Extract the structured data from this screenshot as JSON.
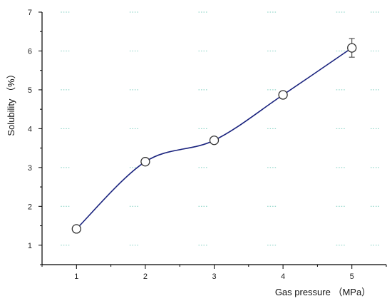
{
  "chart_data": {
    "type": "line",
    "xlabel": "Gas pressure （MPa）",
    "ylabel": "Solubility （%）",
    "x": [
      1,
      2,
      3,
      4,
      5
    ],
    "series": [
      {
        "values": [
          1.42,
          3.15,
          3.7,
          4.87,
          6.08
        ],
        "errors": [
          0.05,
          0.06,
          0.06,
          0.08,
          0.24
        ]
      }
    ],
    "xlim": [
      0.5,
      5.5
    ],
    "ylim": [
      0.5,
      7
    ],
    "xticks": [
      1,
      2,
      3,
      4,
      5
    ],
    "yticks": [
      1,
      2,
      3,
      4,
      5,
      6,
      7
    ],
    "grid": true,
    "colors": {
      "line": "#1a237e",
      "marker": "#333333",
      "axis": "#000000",
      "grid": "#7fcfc0"
    }
  }
}
